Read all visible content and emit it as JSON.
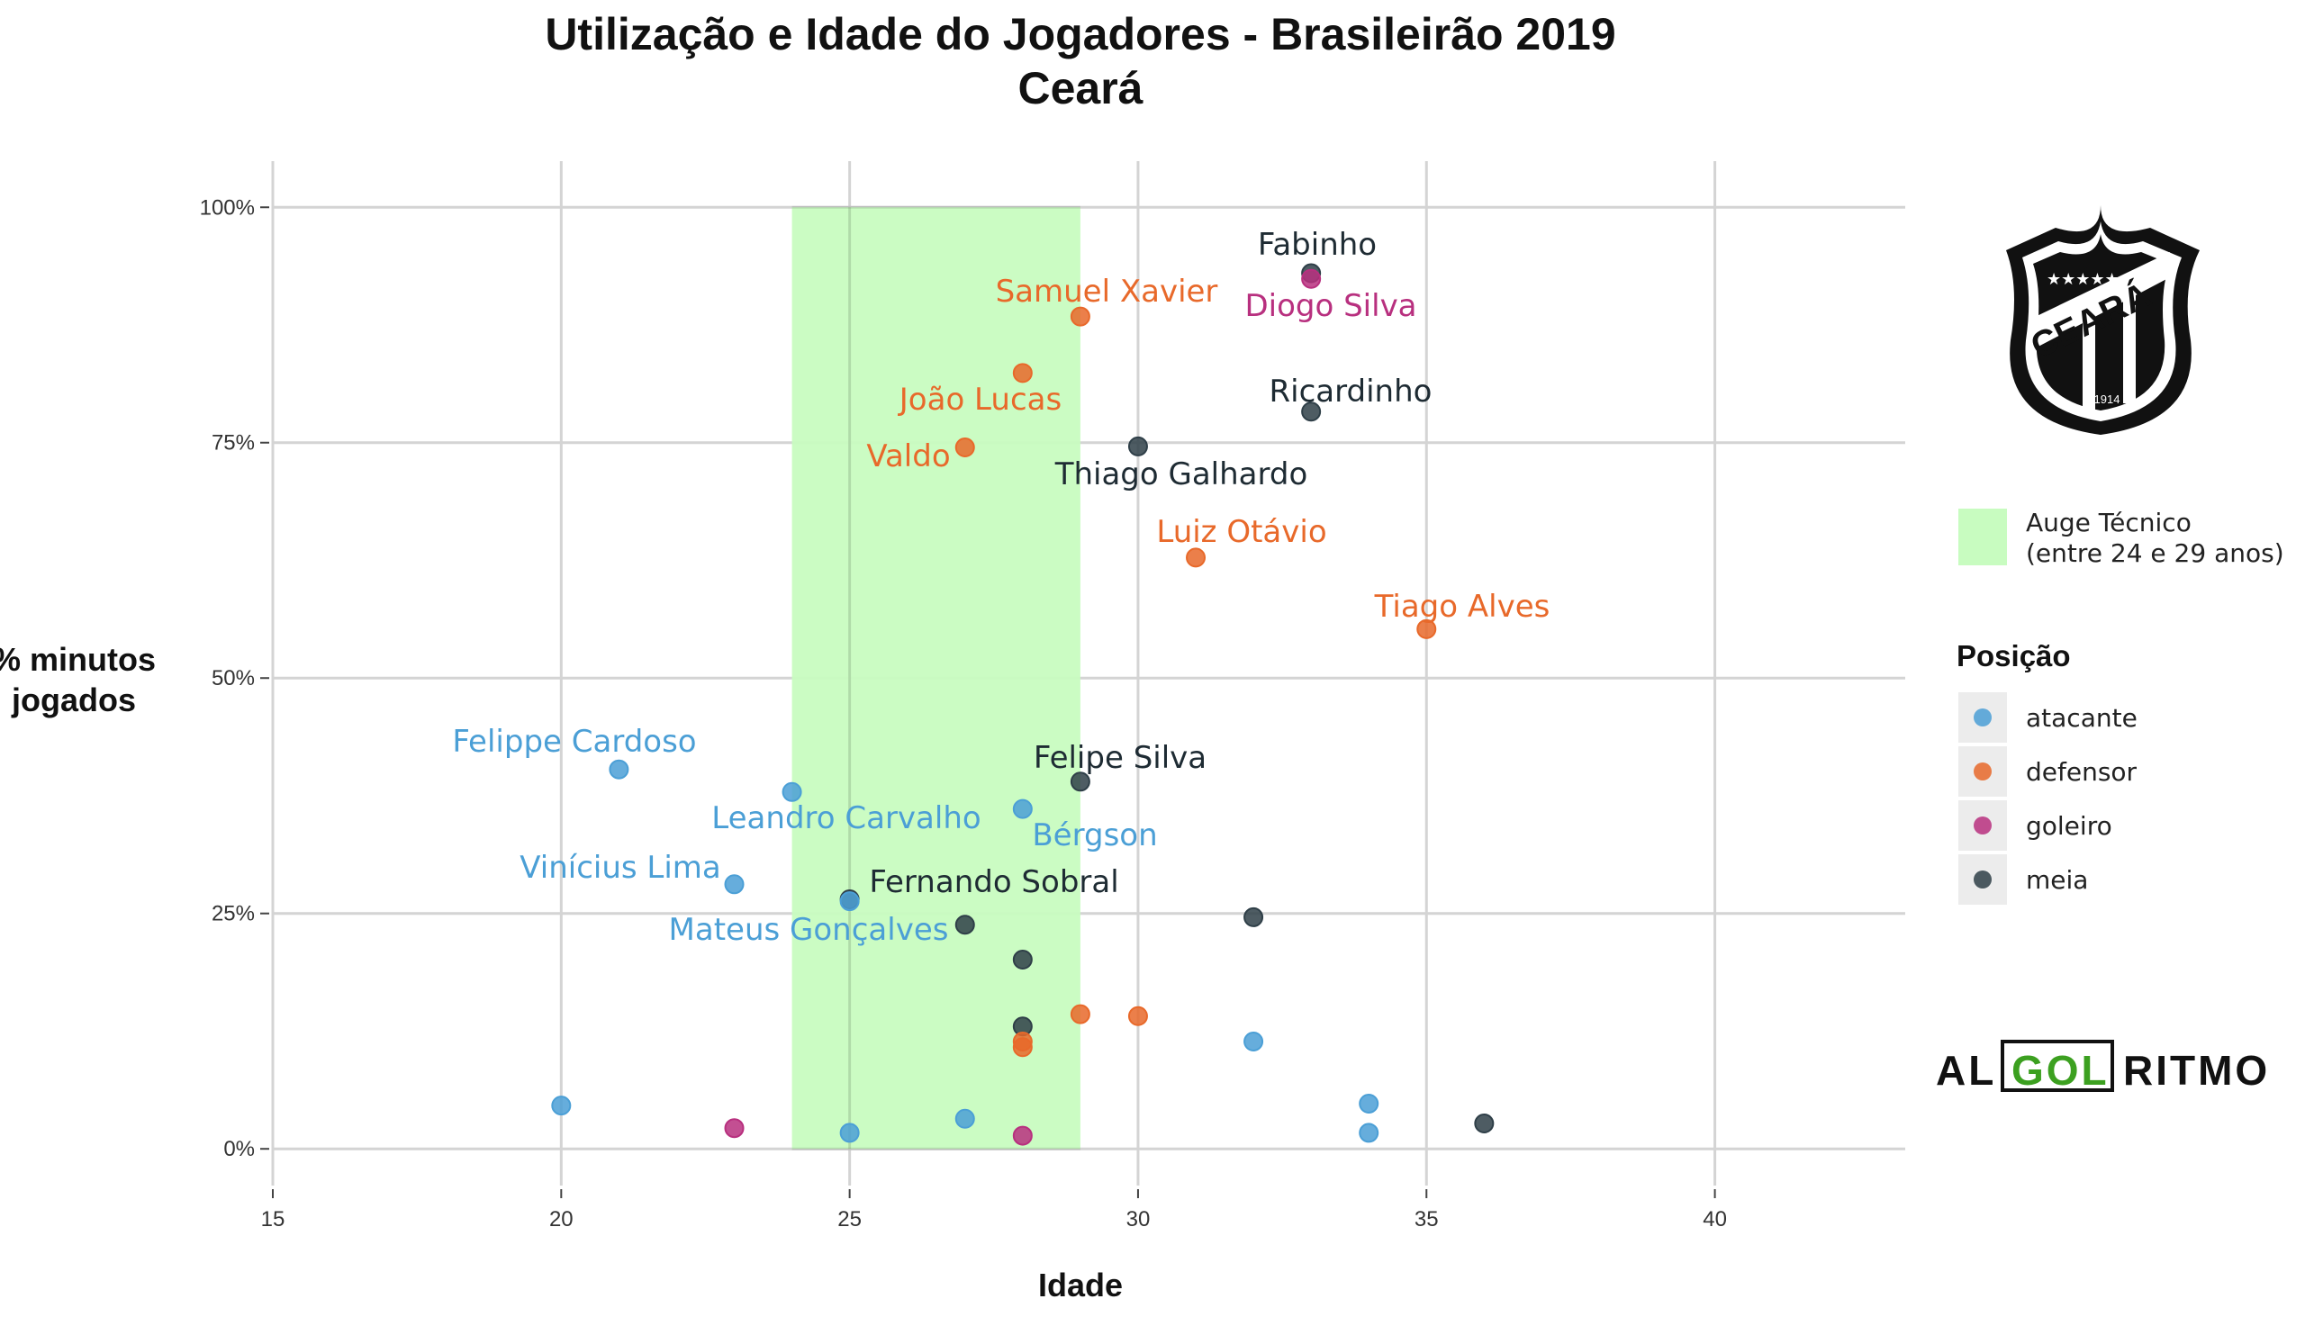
{
  "chart_data": {
    "type": "scatter",
    "title": "Utilização e Idade do Jogadores - Brasileirão 2019",
    "subtitle": "Ceará",
    "xlabel": "Idade",
    "ylabel": [
      "% minutos",
      "jogados"
    ],
    "xlim": [
      15,
      43.3
    ],
    "ylim": [
      -3.9,
      104.9
    ],
    "x_ticks": [
      15,
      20,
      25,
      30,
      35,
      40
    ],
    "y_ticks": [
      0,
      25,
      50,
      75,
      100
    ],
    "y_tick_labels": [
      "0%",
      "25%",
      "50%",
      "75%",
      "100%"
    ],
    "grid": true,
    "highlight_band": {
      "x": [
        24,
        29
      ],
      "color": "#c8fcc0",
      "label": "Auge Técnico",
      "sublabel": "(entre 24 e 29 anos)"
    },
    "legend": {
      "title": "Posição",
      "placement": "right",
      "items": [
        {
          "name": "atacante",
          "color": "#4b9fd6"
        },
        {
          "name": "defensor",
          "color": "#e8692a"
        },
        {
          "name": "goleiro",
          "color": "#b8307f"
        },
        {
          "name": "meia",
          "color": "#2f3f48"
        }
      ]
    },
    "points": [
      {
        "age": 33,
        "pct": 93.0,
        "pos": "meia",
        "name": "Fabinho"
      },
      {
        "age": 33,
        "pct": 92.4,
        "pos": "goleiro",
        "name": "Diogo Silva"
      },
      {
        "age": 29,
        "pct": 88.4,
        "pos": "defensor",
        "name": "Samuel Xavier"
      },
      {
        "age": 28,
        "pct": 82.4,
        "pos": "defensor",
        "name": "João Lucas"
      },
      {
        "age": 33,
        "pct": 78.3,
        "pos": "meia",
        "name": "Ricardinho"
      },
      {
        "age": 27,
        "pct": 74.5,
        "pos": "defensor",
        "name": "Valdo"
      },
      {
        "age": 30,
        "pct": 74.6,
        "pos": "meia",
        "name": "Thiago Galhardo"
      },
      {
        "age": 31,
        "pct": 62.8,
        "pos": "defensor",
        "name": "Luiz Otávio"
      },
      {
        "age": 35,
        "pct": 55.2,
        "pos": "defensor",
        "name": "Tiago Alves"
      },
      {
        "age": 21,
        "pct": 40.3,
        "pos": "atacante",
        "name": "Felippe Cardoso"
      },
      {
        "age": 24,
        "pct": 37.9,
        "pos": "atacante",
        "name": "Leandro Carvalho"
      },
      {
        "age": 29,
        "pct": 39.0,
        "pos": "meia",
        "name": "Felipe Silva"
      },
      {
        "age": 28,
        "pct": 36.1,
        "pos": "atacante",
        "name": "Bérgson"
      },
      {
        "age": 23,
        "pct": 28.1,
        "pos": "atacante",
        "name": "Vinícius Lima"
      },
      {
        "age": 25,
        "pct": 26.5,
        "pos": "meia",
        "name": "Fernando Sobral"
      },
      {
        "age": 25,
        "pct": 26.3,
        "pos": "atacante",
        "name": "Mateus Gonçalves"
      },
      {
        "age": 27,
        "pct": 23.8,
        "pos": "meia",
        "name": ""
      },
      {
        "age": 32,
        "pct": 24.6,
        "pos": "meia",
        "name": ""
      },
      {
        "age": 28,
        "pct": 20.1,
        "pos": "meia",
        "name": ""
      },
      {
        "age": 28,
        "pct": 13.0,
        "pos": "meia",
        "name": ""
      },
      {
        "age": 29,
        "pct": 14.3,
        "pos": "defensor",
        "name": ""
      },
      {
        "age": 30,
        "pct": 14.1,
        "pos": "defensor",
        "name": ""
      },
      {
        "age": 28,
        "pct": 11.4,
        "pos": "defensor",
        "name": ""
      },
      {
        "age": 28,
        "pct": 10.8,
        "pos": "defensor",
        "name": ""
      },
      {
        "age": 32,
        "pct": 11.4,
        "pos": "atacante",
        "name": ""
      },
      {
        "age": 20,
        "pct": 4.6,
        "pos": "atacante",
        "name": ""
      },
      {
        "age": 34,
        "pct": 4.8,
        "pos": "atacante",
        "name": ""
      },
      {
        "age": 34,
        "pct": 1.7,
        "pos": "atacante",
        "name": ""
      },
      {
        "age": 36,
        "pct": 2.7,
        "pos": "meia",
        "name": ""
      },
      {
        "age": 23,
        "pct": 2.2,
        "pos": "goleiro",
        "name": ""
      },
      {
        "age": 25,
        "pct": 1.7,
        "pos": "atacante",
        "name": ""
      },
      {
        "age": 27,
        "pct": 3.2,
        "pos": "atacante",
        "name": ""
      },
      {
        "age": 28,
        "pct": 1.4,
        "pos": "goleiro",
        "name": ""
      }
    ]
  },
  "logos": {
    "club": {
      "name": "CEARÁ",
      "year": "1914"
    },
    "brand": {
      "left": "AL",
      "middle": "GOL",
      "right": "RITMO"
    }
  }
}
